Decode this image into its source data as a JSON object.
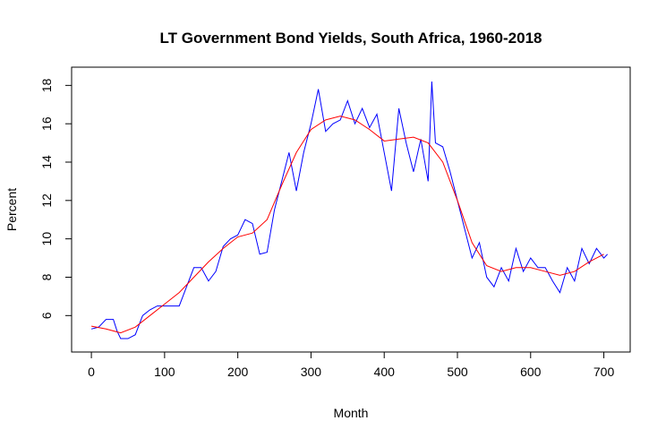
{
  "chart_data": {
    "type": "line",
    "title": "LT Government Bond Yields, South Africa, 1960-2018",
    "x_label": "Month",
    "y_label": "Percent",
    "xlim": [
      -27,
      736
    ],
    "ylim": [
      4.1,
      18.95
    ],
    "xticks": [
      0,
      100,
      200,
      300,
      400,
      500,
      600,
      700
    ],
    "yticks": [
      6,
      8,
      10,
      12,
      14,
      16,
      18
    ],
    "series": [
      {
        "color": "#0000ff",
        "x": [
          0,
          10,
          20,
          30,
          35,
          40,
          50,
          60,
          70,
          80,
          90,
          100,
          110,
          120,
          130,
          140,
          150,
          160,
          170,
          180,
          190,
          200,
          210,
          220,
          230,
          240,
          250,
          260,
          270,
          280,
          290,
          300,
          310,
          320,
          330,
          340,
          350,
          360,
          370,
          380,
          390,
          400,
          410,
          420,
          430,
          440,
          450,
          460,
          465,
          470,
          480,
          490,
          500,
          510,
          520,
          530,
          540,
          550,
          560,
          570,
          580,
          590,
          600,
          610,
          620,
          630,
          640,
          650,
          660,
          670,
          680,
          690,
          700,
          705
        ],
        "values": [
          5.3,
          5.4,
          5.8,
          5.8,
          5.2,
          4.8,
          4.8,
          5.0,
          6.0,
          6.3,
          6.5,
          6.5,
          6.5,
          6.5,
          7.5,
          8.5,
          8.5,
          7.8,
          8.3,
          9.6,
          10.0,
          10.2,
          11.0,
          10.8,
          9.2,
          9.3,
          11.5,
          13.0,
          14.5,
          12.5,
          14.5,
          16.0,
          17.8,
          15.6,
          16.0,
          16.2,
          17.2,
          16.0,
          16.8,
          15.8,
          16.5,
          14.5,
          12.5,
          16.8,
          15.0,
          13.5,
          15.2,
          13.0,
          18.2,
          15.0,
          14.8,
          13.5,
          12.0,
          10.5,
          9.0,
          9.8,
          8.0,
          7.5,
          8.5,
          7.8,
          9.5,
          8.3,
          9.0,
          8.5,
          8.5,
          7.8,
          7.2,
          8.5,
          7.8,
          9.5,
          8.7,
          9.5,
          9.0,
          9.2
        ]
      },
      {
        "color": "#ff0000",
        "x": [
          0,
          20,
          40,
          60,
          80,
          100,
          120,
          140,
          160,
          180,
          200,
          220,
          240,
          260,
          280,
          300,
          320,
          340,
          360,
          380,
          400,
          420,
          440,
          460,
          480,
          500,
          520,
          540,
          560,
          580,
          600,
          620,
          640,
          660,
          680,
          700
        ],
        "values": [
          5.45,
          5.3,
          5.1,
          5.4,
          6.0,
          6.6,
          7.2,
          8.0,
          8.8,
          9.5,
          10.1,
          10.3,
          11.0,
          12.8,
          14.5,
          15.7,
          16.2,
          16.4,
          16.2,
          15.7,
          15.1,
          15.2,
          15.3,
          15.0,
          14.0,
          12.0,
          9.8,
          8.6,
          8.3,
          8.5,
          8.5,
          8.3,
          8.1,
          8.3,
          8.8,
          9.2
        ]
      }
    ]
  }
}
